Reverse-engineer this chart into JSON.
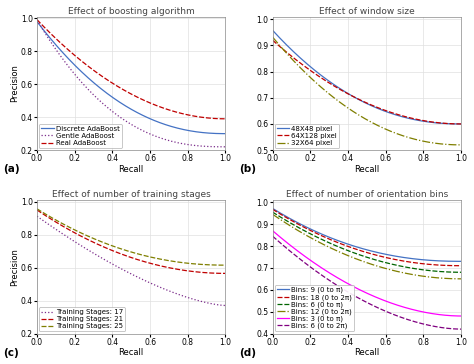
{
  "title_a": "Effect of boosting algorithm",
  "title_b": "Effect of window size",
  "title_c": "Effect of number of training stages",
  "title_d": "Effect of number of orientation bins",
  "xlabel": "Recall",
  "ylabel": "Precision",
  "label_a": "(a)",
  "label_b": "(b)",
  "label_c": "(c)",
  "label_d": "(d)",
  "plot_a": {
    "lines": [
      {
        "label": "Discrete AdaBoost",
        "color": "#4472C4",
        "linestyle": "solid",
        "p0": 0.98,
        "p1": 0.3,
        "alpha": 2.2
      },
      {
        "label": "Gentle AdaBoost",
        "color": "#7B2D8B",
        "linestyle": "dotted",
        "p0": 0.99,
        "p1": 0.22,
        "alpha": 2.5
      },
      {
        "label": "Real AdaBoost",
        "color": "#C00000",
        "linestyle": "dashed",
        "p0": 0.992,
        "p1": 0.39,
        "alpha": 2.0
      }
    ],
    "ylim": [
      0.2,
      1.01
    ],
    "yticks": [
      0.2,
      0.4,
      0.6,
      0.8,
      1.0
    ]
  },
  "plot_b": {
    "lines": [
      {
        "label": "48X48 pixel",
        "color": "#4472C4",
        "linestyle": "solid",
        "p0": 0.958,
        "p1": 0.6,
        "alpha": 2.2
      },
      {
        "label": "64X128 pixel",
        "color": "#C00000",
        "linestyle": "dashed",
        "p0": 0.92,
        "p1": 0.6,
        "alpha": 2.0
      },
      {
        "label": "32X64 pixel",
        "color": "#7F7F00",
        "linestyle": "dashdot",
        "p0": 0.932,
        "p1": 0.52,
        "alpha": 2.1
      }
    ],
    "ylim": [
      0.5,
      1.01
    ],
    "yticks": [
      0.5,
      0.6,
      0.7,
      0.8,
      0.9,
      1.0
    ]
  },
  "plot_c": {
    "lines": [
      {
        "label": "Training Stages: 17",
        "color": "#7B2D8B",
        "linestyle": "dotted",
        "p0": 0.912,
        "p1": 0.37,
        "alpha": 1.5
      },
      {
        "label": "Training Stages: 21",
        "color": "#C00000",
        "linestyle": "dashed",
        "p0": 0.95,
        "p1": 0.565,
        "alpha": 2.0
      },
      {
        "label": "Training Stages: 25",
        "color": "#7F7F00",
        "linestyle": "dashed",
        "p0": 0.957,
        "p1": 0.615,
        "alpha": 2.1
      }
    ],
    "ylim": [
      0.2,
      1.01
    ],
    "yticks": [
      0.2,
      0.4,
      0.6,
      0.8,
      1.0
    ]
  },
  "plot_d": {
    "lines": [
      {
        "label": "Bins: 9 (0 to π)",
        "color": "#4472C4",
        "linestyle": "solid",
        "p0": 0.972,
        "p1": 0.73,
        "alpha": 2.2
      },
      {
        "label": "Bins: 18 (0 to 2π)",
        "color": "#C00000",
        "linestyle": "dashed",
        "p0": 0.968,
        "p1": 0.71,
        "alpha": 2.1
      },
      {
        "label": "Bins: 6 (0 to π)",
        "color": "#006400",
        "linestyle": "dashed",
        "p0": 0.955,
        "p1": 0.68,
        "alpha": 2.0
      },
      {
        "label": "Bins: 12 (0 to 2π)",
        "color": "#7F7F00",
        "linestyle": "dashdot",
        "p0": 0.945,
        "p1": 0.65,
        "alpha": 2.0
      },
      {
        "label": "Bins: 3 (0 to π)",
        "color": "#FF00FF",
        "linestyle": "solid",
        "p0": 0.87,
        "p1": 0.48,
        "alpha": 1.9
      },
      {
        "label": "Bins: 6 (0 to 2π)",
        "color": "#800080",
        "linestyle": "dashed",
        "p0": 0.845,
        "p1": 0.42,
        "alpha": 1.8
      }
    ],
    "ylim": [
      0.4,
      1.01
    ],
    "yticks": [
      0.4,
      0.5,
      0.6,
      0.7,
      0.8,
      0.9,
      1.0
    ]
  },
  "bg_color": "#ffffff",
  "grid_color": "#e0e0e0",
  "title_fontsize": 6.5,
  "label_fontsize": 6.0,
  "tick_fontsize": 5.5,
  "legend_fontsize": 5.0,
  "lw": 0.9
}
